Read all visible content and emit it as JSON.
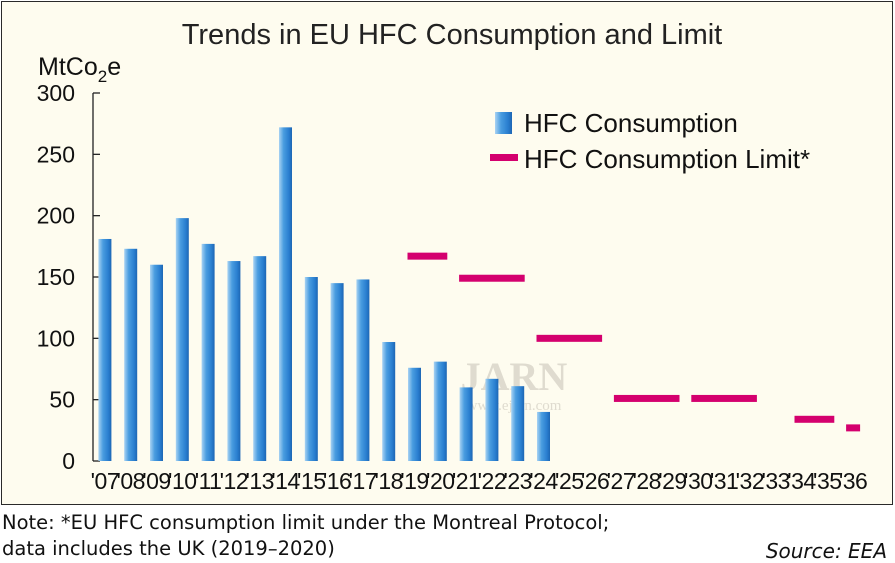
{
  "chart_data": {
    "type": "bar",
    "title": "Trends in EU HFC Consumption and Limit",
    "ylabel": "MtCo2e",
    "ylabel_parts": {
      "base": "MtCo",
      "sub": "2",
      "tail": "e"
    },
    "ylim": [
      0,
      300
    ],
    "yticks": [
      0,
      50,
      100,
      150,
      200,
      250,
      300
    ],
    "categories": [
      "'07",
      "'08",
      "'09",
      "'10",
      "'11",
      "'12",
      "'13",
      "'14",
      "'15",
      "'16",
      "'17",
      "'18",
      "'19",
      "'20",
      "'21",
      "'22",
      "'23",
      "'24",
      "'25",
      "'26",
      "'27",
      "'28",
      "'29",
      "'30",
      "'31",
      "'32",
      "'33",
      "'34",
      "'35",
      "'36"
    ],
    "series": [
      {
        "name": "HFC Consumption",
        "kind": "bar",
        "color": "#2f86d4",
        "values": [
          181,
          173,
          160,
          198,
          177,
          163,
          167,
          272,
          150,
          145,
          148,
          97,
          76,
          81,
          60,
          67,
          61,
          40,
          null,
          null,
          null,
          null,
          null,
          null,
          null,
          null,
          null,
          null,
          null,
          null
        ]
      },
      {
        "name": "HFC Consumption Limit*",
        "kind": "step",
        "color": "#d4006e",
        "segments": [
          {
            "from": "'19",
            "to": "'20",
            "value": 167
          },
          {
            "from": "'21",
            "to": "'23",
            "value": 149
          },
          {
            "from": "'24",
            "to": "'26",
            "value": 100
          },
          {
            "from": "'27",
            "to": "'29",
            "value": 51
          },
          {
            "from": "'30",
            "to": "'32",
            "value": 51
          },
          {
            "from": "'34",
            "to": "'35",
            "value": 34
          },
          {
            "from": "'36",
            "to": "'36",
            "value": 27
          }
        ]
      }
    ],
    "legend": [
      "HFC Consumption",
      "HFC Consumption Limit*"
    ],
    "legend_position": "top-right",
    "watermark": {
      "main": "JARN",
      "sub": "www.ejarn.com"
    }
  },
  "note": {
    "line1": "Note: *EU HFC consumption limit under the Montreal Protocol;",
    "line2": "data includes the UK (2019–2020)"
  },
  "source": "Source: EEA"
}
